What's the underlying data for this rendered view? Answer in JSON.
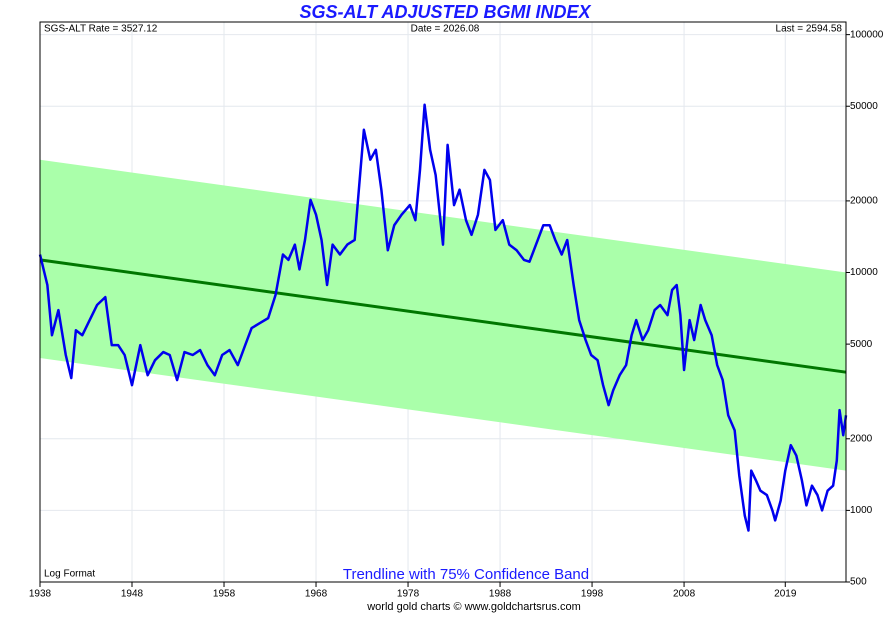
{
  "chart_data": {
    "type": "line",
    "title": "SGS-ALT ADJUSTED BGMI INDEX",
    "stats": [
      "SGS-ALT Rate = 3527.12",
      "Date = 2026.08",
      "Last = 2594.58"
    ],
    "note": "Log Format",
    "subtitle": "Trendline with 75% Confidence Band",
    "credit": "world gold charts © www.goldchartsrus.com",
    "yscale": "log",
    "grid": true,
    "xlim": [
      1938,
      2025.6
    ],
    "xticks": [
      1938,
      1948,
      1958,
      1968,
      1978,
      1988,
      1998,
      2008,
      2019
    ],
    "ylim": [
      500,
      113000
    ],
    "yticks": [
      500,
      1000,
      2000,
      5000,
      10000,
      20000,
      50000,
      100000
    ],
    "band": {
      "x": [
        1938,
        2025.6
      ],
      "upper": [
        29800,
        10000
      ],
      "lower": [
        4370,
        1470
      ],
      "color": "#aaffaa"
    },
    "trend": {
      "x": [
        1938,
        2025.6
      ],
      "values": [
        11300,
        3810
      ],
      "color": "#007700"
    },
    "series": [
      {
        "color": "#0000ee",
        "x": [
          1938.0,
          1938.8,
          1939.3,
          1940.0,
          1940.8,
          1941.4,
          1941.9,
          1942.6,
          1943.4,
          1944.2,
          1945.1,
          1945.8,
          1946.5,
          1947.2,
          1948.0,
          1948.9,
          1949.7,
          1950.5,
          1951.4,
          1952.1,
          1952.9,
          1953.7,
          1954.6,
          1955.4,
          1956.2,
          1957.0,
          1957.8,
          1958.6,
          1959.5,
          1960.3,
          1961.0,
          1961.9,
          1962.8,
          1963.6,
          1964.4,
          1965.0,
          1965.7,
          1966.2,
          1966.8,
          1967.4,
          1968.0,
          1968.6,
          1969.2,
          1969.8,
          1970.6,
          1971.4,
          1972.2,
          1972.7,
          1973.2,
          1973.9,
          1974.5,
          1975.1,
          1975.8,
          1976.5,
          1977.3,
          1978.2,
          1978.8,
          1979.3,
          1979.8,
          1980.4,
          1981.0,
          1981.8,
          1982.3,
          1983.0,
          1983.6,
          1984.3,
          1984.9,
          1985.6,
          1986.3,
          1986.9,
          1987.5,
          1988.3,
          1989.0,
          1989.8,
          1990.6,
          1991.2,
          1992.1,
          1992.7,
          1993.4,
          1994.0,
          1994.7,
          1995.3,
          1996.0,
          1996.6,
          1997.3,
          1997.9,
          1998.6,
          1999.2,
          1999.8,
          2000.3,
          2001.0,
          2001.7,
          2002.3,
          2002.8,
          2003.5,
          2004.1,
          2004.8,
          2005.4,
          2006.2,
          2006.7,
          2007.2,
          2007.6,
          2008.0,
          2008.6,
          2009.1,
          2009.8,
          2010.3,
          2011.0,
          2011.6,
          2012.2,
          2012.8,
          2013.5,
          2014.0,
          2014.6,
          2015.0,
          2015.3,
          2015.8,
          2016.3,
          2017.0,
          2017.6,
          2017.9,
          2018.5,
          2019.0,
          2019.6,
          2020.2,
          2020.8,
          2021.3,
          2021.9,
          2022.5,
          2023.0,
          2023.6,
          2024.2,
          2024.6,
          2024.9,
          2025.3,
          2025.6
        ],
        "values": [
          11900,
          8860,
          5450,
          6950,
          4500,
          3600,
          5720,
          5450,
          6310,
          7300,
          7880,
          4950,
          4950,
          4500,
          3360,
          4950,
          3700,
          4280,
          4630,
          4500,
          3530,
          4630,
          4500,
          4720,
          4080,
          3700,
          4500,
          4720,
          4080,
          4950,
          5840,
          6130,
          6430,
          8040,
          11900,
          11300,
          13100,
          10300,
          13700,
          20200,
          17500,
          13700,
          8860,
          13100,
          11900,
          13100,
          13700,
          23400,
          39800,
          29800,
          32800,
          22300,
          12400,
          15800,
          17500,
          19200,
          16600,
          27000,
          50700,
          32800,
          25700,
          13100,
          34400,
          19200,
          22300,
          16600,
          14400,
          17500,
          27000,
          24500,
          15100,
          16600,
          13100,
          12400,
          11300,
          11100,
          13700,
          15800,
          15800,
          13700,
          11900,
          13700,
          8860,
          6310,
          5200,
          4500,
          4280,
          3360,
          2770,
          3200,
          3700,
          4080,
          5450,
          6310,
          5200,
          5720,
          6950,
          7300,
          6620,
          8440,
          8860,
          6620,
          3890,
          6310,
          5200,
          7300,
          6310,
          5450,
          4080,
          3530,
          2510,
          2170,
          1400,
          950,
          823,
          1470,
          1340,
          1210,
          1160,
          1000,
          908,
          1100,
          1470,
          1880,
          1700,
          1340,
          1050,
          1270,
          1160,
          1000,
          1210,
          1270,
          1620,
          2640,
          2070,
          2510
        ]
      }
    ]
  }
}
